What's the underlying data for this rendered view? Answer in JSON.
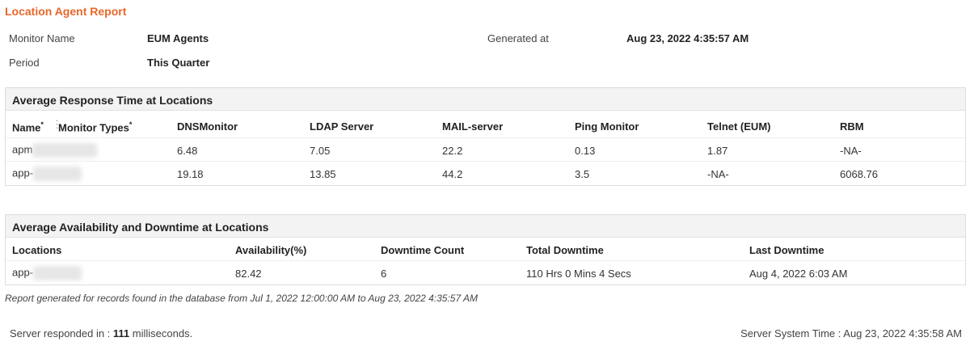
{
  "title": "Location Agent Report",
  "meta": {
    "monitor_name_label": "Monitor Name",
    "monitor_name": "EUM Agents",
    "period_label": "Period",
    "period": "This Quarter",
    "generated_label": "Generated at",
    "generated": "Aug 23, 2022 4:35:57 AM"
  },
  "response": {
    "title": "Average Response Time at Locations",
    "name_header": "Name",
    "types_header": "Monitor Types",
    "sort_mark": "*",
    "columns": [
      "DNSMonitor",
      "LDAP Server",
      "MAIL-server",
      "Ping Monitor",
      "Telnet (EUM)",
      "RBM"
    ],
    "rows": [
      {
        "name": "apm",
        "values": [
          "6.48",
          "7.05",
          "22.2",
          "0.13",
          "1.87",
          "-NA-"
        ]
      },
      {
        "name": "app-",
        "values": [
          "19.18",
          "13.85",
          "44.2",
          "3.5",
          "-NA-",
          "6068.76"
        ]
      }
    ]
  },
  "availability": {
    "title": "Average Availability and Downtime at Locations",
    "columns": [
      "Locations",
      "Availability(%)",
      "Downtime Count",
      "Total Downtime",
      "Last Downtime"
    ],
    "rows": [
      {
        "values": [
          "app-",
          "82.42",
          "6",
          "110 Hrs 0 Mins 4 Secs",
          "Aug 4, 2022 6:03 AM"
        ]
      }
    ]
  },
  "footnote": "Report generated for records found in the database from Jul 1, 2022 12:00:00 AM to Aug 23, 2022 4:35:57 AM",
  "footer": {
    "responded_prefix": "Server responded in : ",
    "responded_ms": "111",
    "responded_suffix": " milliseconds.",
    "server_time": "Server System Time : Aug 23, 2022 4:35:58 AM"
  },
  "colors": {
    "title": "#e8672a",
    "header_bg": "#f3f3f3"
  }
}
